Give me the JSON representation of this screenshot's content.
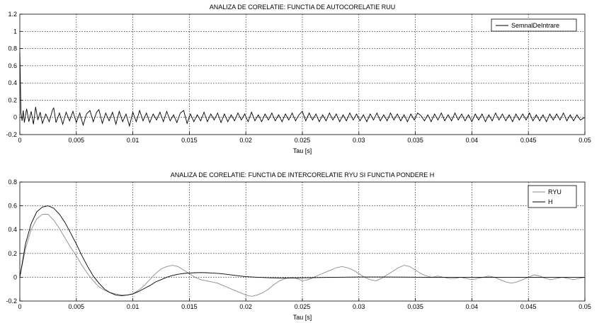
{
  "chart_data": [
    {
      "type": "line",
      "title": "ANALIZA DE CORELATIE: FUNCTIA DE AUTOCORELATIE RUU",
      "xlabel": "Tau [s]",
      "ylabel": "",
      "xlim": [
        0,
        0.05
      ],
      "ylim": [
        -0.2,
        1.2
      ],
      "xticks": [
        "0",
        "0.005",
        "0.01",
        "0.015",
        "0.02",
        "0.025",
        "0.03",
        "0.035",
        "0.04",
        "0.045",
        "0.05"
      ],
      "yticks": [
        "-0.2",
        "0",
        "0.2",
        "0.4",
        "0.6",
        "0.8",
        "1",
        "1.2"
      ],
      "grid": true,
      "legend": "top-right",
      "series": [
        {
          "name": "SemnalDeIntrare",
          "color": "#000000",
          "x": [
            0,
            0.0001,
            0.0002,
            0.0003,
            0.0004,
            0.0006,
            0.0008,
            0.001,
            0.0012,
            0.0014,
            0.0016,
            0.0018,
            0.002,
            0.0023,
            0.0026,
            0.0029,
            0.003,
            0.0032,
            0.0035,
            0.0038,
            0.0041,
            0.0044,
            0.0047,
            0.005,
            0.0053,
            0.0056,
            0.0059,
            0.0062,
            0.0065,
            0.0068,
            0.007,
            0.0073,
            0.0076,
            0.0079,
            0.0082,
            0.0085,
            0.0088,
            0.0091,
            0.0094,
            0.0097,
            0.01,
            0.0103,
            0.0106,
            0.0109,
            0.0112,
            0.0115,
            0.0118,
            0.0121,
            0.0124,
            0.0127,
            0.013,
            0.0133,
            0.0136,
            0.0139,
            0.0142,
            0.0145,
            0.0148,
            0.0151,
            0.0154,
            0.0157,
            0.016,
            0.0163,
            0.0166,
            0.0169,
            0.0172,
            0.0175,
            0.0178,
            0.0181,
            0.0184,
            0.0187,
            0.019,
            0.0193,
            0.0196,
            0.0199,
            0.0202,
            0.0205,
            0.0208,
            0.0211,
            0.0214,
            0.0217,
            0.022,
            0.0223,
            0.0226,
            0.0229,
            0.0232,
            0.0235,
            0.0238,
            0.0241,
            0.0244,
            0.0247,
            0.025,
            0.0253,
            0.0256,
            0.0259,
            0.0262,
            0.0265,
            0.0268,
            0.0271,
            0.0274,
            0.0277,
            0.028,
            0.0283,
            0.0286,
            0.0289,
            0.0292,
            0.0295,
            0.0298,
            0.0301,
            0.0304,
            0.0307,
            0.031,
            0.0313,
            0.0316,
            0.0319,
            0.0322,
            0.0325,
            0.0328,
            0.0331,
            0.0334,
            0.0337,
            0.034,
            0.0343,
            0.0346,
            0.0349,
            0.0352,
            0.0355,
            0.0358,
            0.0361,
            0.0364,
            0.0367,
            0.037,
            0.0373,
            0.0376,
            0.0379,
            0.0382,
            0.0385,
            0.0388,
            0.0391,
            0.0394,
            0.0397,
            0.04,
            0.0403,
            0.0406,
            0.0409,
            0.0412,
            0.0415,
            0.0418,
            0.0421,
            0.0424,
            0.0427,
            0.043,
            0.0433,
            0.0436,
            0.0439,
            0.0442,
            0.0445,
            0.0448,
            0.0451,
            0.0454,
            0.0457,
            0.046,
            0.0463,
            0.0466,
            0.0469,
            0.0472,
            0.0475,
            0.0478,
            0.0481,
            0.0484,
            0.0487,
            0.049,
            0.0493,
            0.0496,
            0.05
          ],
          "y": [
            0.75,
            0.05,
            -0.04,
            0.08,
            -0.06,
            0.1,
            -0.05,
            0.07,
            -0.08,
            0.12,
            -0.03,
            0.06,
            -0.07,
            0.04,
            -0.05,
            0.09,
            0.11,
            -0.06,
            0.05,
            -0.08,
            0.06,
            -0.04,
            0.07,
            -0.06,
            0.05,
            -0.09,
            0.04,
            0.08,
            -0.05,
            0.06,
            0.09,
            -0.07,
            0.05,
            -0.04,
            0.06,
            -0.08,
            0.07,
            -0.05,
            0.04,
            -0.1,
            0.06,
            -0.05,
            0.08,
            -0.04,
            0.05,
            -0.06,
            0.04,
            -0.03,
            0.06,
            -0.05,
            0.07,
            -0.04,
            0.03,
            -0.06,
            0.05,
            0.08,
            -0.07,
            0.04,
            -0.05,
            0.03,
            -0.04,
            0.06,
            -0.05,
            0.04,
            -0.03,
            0.05,
            -0.06,
            0.04,
            -0.05,
            0.03,
            -0.04,
            0.05,
            -0.03,
            0.04,
            -0.05,
            0.06,
            -0.04,
            0.03,
            -0.05,
            0.04,
            -0.03,
            0.05,
            -0.04,
            0.03,
            -0.05,
            0.04,
            -0.03,
            0.05,
            -0.04,
            0.03,
            0.07,
            -0.04,
            0.05,
            -0.03,
            0.04,
            -0.05,
            0.03,
            -0.04,
            0.05,
            -0.03,
            0.04,
            -0.05,
            0.03,
            -0.04,
            0.05,
            -0.03,
            0.04,
            -0.04,
            0.03,
            -0.05,
            0.04,
            -0.03,
            0.05,
            -0.04,
            0.03,
            -0.04,
            0.05,
            -0.03,
            0.04,
            -0.04,
            0.03,
            -0.05,
            0.04,
            -0.03,
            0.05,
            0.02,
            -0.04,
            0.03,
            -0.05,
            0.04,
            -0.03,
            0.05,
            -0.04,
            0.03,
            -0.04,
            0.05,
            -0.03,
            0.04,
            -0.04,
            0.03,
            -0.05,
            0.04,
            -0.03,
            0.04,
            -0.05,
            0.03,
            -0.04,
            0.05,
            -0.03,
            0.04,
            -0.04,
            0.03,
            -0.05,
            0.04,
            -0.03,
            0.04,
            -0.03,
            0.05,
            -0.04,
            0.03,
            -0.04,
            0.03,
            -0.05,
            0.04,
            -0.03,
            0.04,
            -0.03,
            0.05,
            -0.04,
            0.03,
            -0.04,
            0.03,
            -0.03,
            0.0
          ]
        }
      ]
    },
    {
      "type": "line",
      "title": "ANALIZA DE CORELATIE: FUNCTIA DE INTERCORELATIE RYU SI FUNCTIA PONDERE H",
      "xlabel": "Tau [s]",
      "ylabel": "",
      "xlim": [
        0,
        0.05
      ],
      "ylim": [
        -0.2,
        0.8
      ],
      "xticks": [
        "0",
        "0.005",
        "0.01",
        "0.015",
        "0.02",
        "0.025",
        "0.03",
        "0.035",
        "0.04",
        "0.045",
        "0.05"
      ],
      "yticks": [
        "-0.2",
        "0",
        "0.2",
        "0.4",
        "0.6",
        "0.8"
      ],
      "grid": true,
      "legend": "top-right",
      "series": [
        {
          "name": "RYU",
          "color": "#8c8c8c",
          "x": [
            0,
            0.0005,
            0.001,
            0.0015,
            0.002,
            0.0025,
            0.003,
            0.0035,
            0.004,
            0.0045,
            0.005,
            0.0055,
            0.006,
            0.0065,
            0.007,
            0.0075,
            0.008,
            0.0085,
            0.009,
            0.0095,
            0.01,
            0.0105,
            0.011,
            0.0115,
            0.012,
            0.0125,
            0.013,
            0.0135,
            0.014,
            0.0145,
            0.015,
            0.0155,
            0.016,
            0.0165,
            0.017,
            0.0175,
            0.018,
            0.0185,
            0.019,
            0.0195,
            0.02,
            0.0205,
            0.021,
            0.0215,
            0.022,
            0.0225,
            0.023,
            0.0235,
            0.024,
            0.0245,
            0.025,
            0.0255,
            0.026,
            0.0265,
            0.027,
            0.0275,
            0.028,
            0.0285,
            0.029,
            0.0295,
            0.03,
            0.0305,
            0.031,
            0.0315,
            0.032,
            0.0325,
            0.033,
            0.0335,
            0.034,
            0.0345,
            0.035,
            0.0355,
            0.036,
            0.0365,
            0.037,
            0.0375,
            0.038,
            0.0385,
            0.039,
            0.0395,
            0.04,
            0.0405,
            0.041,
            0.0415,
            0.042,
            0.0425,
            0.043,
            0.0435,
            0.044,
            0.0445,
            0.045,
            0.0455,
            0.046,
            0.0465,
            0.047,
            0.0475,
            0.048,
            0.0485,
            0.049,
            0.0495,
            0.05
          ],
          "y": [
            0.0,
            0.24,
            0.4,
            0.49,
            0.53,
            0.53,
            0.48,
            0.41,
            0.33,
            0.25,
            0.18,
            0.1,
            0.03,
            -0.03,
            -0.08,
            -0.11,
            -0.13,
            -0.14,
            -0.15,
            -0.15,
            -0.14,
            -0.11,
            -0.07,
            -0.02,
            0.03,
            0.07,
            0.09,
            0.1,
            0.09,
            0.06,
            0.03,
            0.0,
            -0.02,
            -0.03,
            -0.04,
            -0.05,
            -0.07,
            -0.09,
            -0.11,
            -0.13,
            -0.15,
            -0.16,
            -0.15,
            -0.13,
            -0.1,
            -0.06,
            -0.03,
            -0.01,
            0.0,
            -0.01,
            -0.03,
            -0.02,
            0.0,
            0.02,
            0.04,
            0.06,
            0.08,
            0.09,
            0.08,
            0.06,
            0.03,
            0.0,
            -0.02,
            -0.03,
            -0.01,
            0.02,
            0.05,
            0.08,
            0.1,
            0.09,
            0.06,
            0.03,
            0.01,
            0.0,
            0.01,
            0.0,
            -0.01,
            -0.01,
            0.0,
            -0.01,
            -0.02,
            -0.01,
            0.0,
            0.01,
            0.0,
            -0.02,
            -0.04,
            -0.05,
            -0.04,
            -0.02,
            0.0,
            0.02,
            0.01,
            -0.01,
            -0.02,
            -0.01,
            0.0,
            -0.01,
            -0.02,
            -0.01,
            0.0
          ]
        },
        {
          "name": "H",
          "color": "#000000",
          "x": [
            0,
            0.0005,
            0.001,
            0.0015,
            0.002,
            0.0025,
            0.003,
            0.0035,
            0.004,
            0.0045,
            0.005,
            0.0055,
            0.006,
            0.0065,
            0.007,
            0.0075,
            0.008,
            0.0085,
            0.009,
            0.0095,
            0.01,
            0.0105,
            0.011,
            0.0115,
            0.012,
            0.0125,
            0.013,
            0.0135,
            0.014,
            0.0145,
            0.015,
            0.0155,
            0.016,
            0.0165,
            0.017,
            0.0175,
            0.018,
            0.0185,
            0.019,
            0.0195,
            0.02,
            0.021,
            0.022,
            0.023,
            0.024,
            0.025,
            0.026,
            0.028,
            0.03,
            0.032,
            0.034,
            0.036,
            0.038,
            0.04,
            0.042,
            0.044,
            0.046,
            0.048,
            0.05
          ],
          "y": [
            0.0,
            0.28,
            0.45,
            0.55,
            0.59,
            0.6,
            0.58,
            0.53,
            0.46,
            0.37,
            0.28,
            0.18,
            0.09,
            0.01,
            -0.05,
            -0.1,
            -0.13,
            -0.15,
            -0.155,
            -0.15,
            -0.14,
            -0.12,
            -0.095,
            -0.07,
            -0.04,
            -0.02,
            0.0,
            0.015,
            0.025,
            0.032,
            0.036,
            0.038,
            0.039,
            0.038,
            0.036,
            0.033,
            0.028,
            0.022,
            0.016,
            0.01,
            0.005,
            0.0,
            -0.004,
            -0.006,
            -0.006,
            -0.005,
            -0.003,
            0.0,
            0.002,
            0.002,
            0.001,
            0.0,
            0.0,
            0.0,
            0.0,
            0.0,
            0.0,
            0.0,
            0.0
          ]
        }
      ]
    }
  ]
}
